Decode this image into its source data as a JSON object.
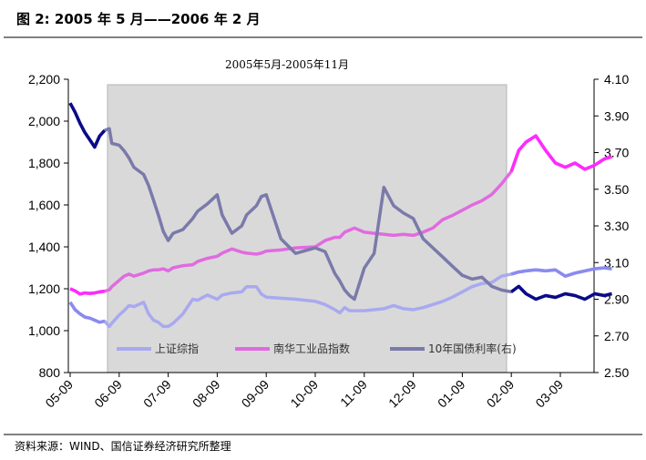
{
  "header": {
    "title": "图 2: 2005 年 5 月——2006 年 2 月"
  },
  "source": "资料来源：WIND、国信证券经济研究所整理",
  "chart_data": {
    "type": "line",
    "annotation": "2005年5月-2005年11月",
    "shaded_range": [
      "2005-05",
      "2005-11"
    ],
    "x_labels": [
      "05-09",
      "06-09",
      "07-09",
      "08-09",
      "09-09",
      "10-09",
      "11-09",
      "12-09",
      "01-09",
      "02-09",
      "03-09"
    ],
    "y_left": {
      "min": 800,
      "max": 2200,
      "ticks": [
        "2,200",
        "2,000",
        "1,800",
        "1,600",
        "1,400",
        "1,200",
        "1,000",
        "800"
      ]
    },
    "y_right": {
      "min": 2.5,
      "max": 4.1,
      "ticks": [
        "4.10",
        "3.90",
        "3.70",
        "3.50",
        "3.30",
        "3.10",
        "2.90",
        "2.70",
        "2.50"
      ]
    },
    "grid": false,
    "legend_position": "bottom-inside",
    "series": [
      {
        "name": "上证综指",
        "axis": "left",
        "color": "#a9a9f0",
        "points": [
          [
            0,
            1135
          ],
          [
            0.1,
            1100
          ],
          [
            0.2,
            1080
          ],
          [
            0.3,
            1065
          ],
          [
            0.4,
            1060
          ],
          [
            0.5,
            1050
          ],
          [
            0.6,
            1040
          ],
          [
            0.7,
            1045
          ],
          [
            0.8,
            1020
          ],
          [
            0.85,
            1035
          ],
          [
            1,
            1075
          ],
          [
            1.1,
            1095
          ],
          [
            1.2,
            1120
          ],
          [
            1.3,
            1115
          ],
          [
            1.5,
            1135
          ],
          [
            1.6,
            1080
          ],
          [
            1.7,
            1050
          ],
          [
            1.8,
            1040
          ],
          [
            1.9,
            1020
          ],
          [
            2,
            1020
          ],
          [
            2.1,
            1035
          ],
          [
            2.3,
            1080
          ],
          [
            2.5,
            1150
          ],
          [
            2.6,
            1145
          ],
          [
            2.8,
            1170
          ],
          [
            3,
            1150
          ],
          [
            3.1,
            1170
          ],
          [
            3.3,
            1180
          ],
          [
            3.5,
            1185
          ],
          [
            3.6,
            1210
          ],
          [
            3.8,
            1210
          ],
          [
            3.9,
            1175
          ],
          [
            4,
            1160
          ],
          [
            4.3,
            1155
          ],
          [
            4.6,
            1150
          ],
          [
            5,
            1140
          ],
          [
            5.2,
            1125
          ],
          [
            5.4,
            1100
          ],
          [
            5.5,
            1085
          ],
          [
            5.6,
            1110
          ],
          [
            5.7,
            1095
          ],
          [
            5.8,
            1095
          ],
          [
            6,
            1095
          ],
          [
            6.2,
            1100
          ],
          [
            6.4,
            1105
          ],
          [
            6.6,
            1120
          ],
          [
            6.8,
            1105
          ],
          [
            7,
            1100
          ],
          [
            7.2,
            1110
          ],
          [
            7.4,
            1125
          ],
          [
            7.6,
            1140
          ],
          [
            7.8,
            1160
          ],
          [
            8,
            1185
          ],
          [
            8.2,
            1210
          ],
          [
            8.4,
            1225
          ],
          [
            8.6,
            1230
          ],
          [
            8.8,
            1260
          ],
          [
            9,
            1270
          ],
          [
            9.15,
            1280
          ],
          [
            9.3,
            1285
          ],
          [
            9.5,
            1290
          ],
          [
            9.7,
            1285
          ],
          [
            9.9,
            1290
          ],
          [
            10.1,
            1260
          ],
          [
            10.3,
            1275
          ],
          [
            10.5,
            1285
          ],
          [
            10.7,
            1295
          ],
          [
            10.9,
            1300
          ],
          [
            11.05,
            1295
          ]
        ]
      },
      {
        "name": "南华工业品指数",
        "axis": "left",
        "color": "#e06be0",
        "points": [
          [
            0,
            1200
          ],
          [
            0.1,
            1190
          ],
          [
            0.2,
            1175
          ],
          [
            0.3,
            1180
          ],
          [
            0.4,
            1178
          ],
          [
            0.5,
            1180
          ],
          [
            0.6,
            1185
          ],
          [
            0.7,
            1188
          ],
          [
            0.8,
            1195
          ],
          [
            0.85,
            1210
          ],
          [
            1,
            1240
          ],
          [
            1.1,
            1260
          ],
          [
            1.2,
            1270
          ],
          [
            1.3,
            1260
          ],
          [
            1.5,
            1275
          ],
          [
            1.6,
            1285
          ],
          [
            1.7,
            1290
          ],
          [
            1.8,
            1290
          ],
          [
            1.9,
            1295
          ],
          [
            2,
            1285
          ],
          [
            2.1,
            1300
          ],
          [
            2.3,
            1310
          ],
          [
            2.5,
            1315
          ],
          [
            2.6,
            1330
          ],
          [
            2.8,
            1345
          ],
          [
            3,
            1355
          ],
          [
            3.1,
            1370
          ],
          [
            3.3,
            1390
          ],
          [
            3.5,
            1375
          ],
          [
            3.6,
            1370
          ],
          [
            3.8,
            1365
          ],
          [
            3.9,
            1370
          ],
          [
            4,
            1380
          ],
          [
            4.3,
            1385
          ],
          [
            4.6,
            1395
          ],
          [
            5,
            1400
          ],
          [
            5.2,
            1430
          ],
          [
            5.4,
            1445
          ],
          [
            5.5,
            1445
          ],
          [
            5.6,
            1470
          ],
          [
            5.7,
            1480
          ],
          [
            5.8,
            1490
          ],
          [
            6,
            1470
          ],
          [
            6.2,
            1465
          ],
          [
            6.4,
            1460
          ],
          [
            6.6,
            1455
          ],
          [
            6.8,
            1460
          ],
          [
            7,
            1455
          ],
          [
            7.2,
            1470
          ],
          [
            7.4,
            1490
          ],
          [
            7.6,
            1530
          ],
          [
            7.8,
            1550
          ],
          [
            8,
            1575
          ],
          [
            8.2,
            1600
          ],
          [
            8.4,
            1620
          ],
          [
            8.6,
            1650
          ],
          [
            8.8,
            1700
          ],
          [
            9,
            1760
          ],
          [
            9.15,
            1860
          ],
          [
            9.3,
            1900
          ],
          [
            9.5,
            1930
          ],
          [
            9.7,
            1860
          ],
          [
            9.9,
            1800
          ],
          [
            10.1,
            1780
          ],
          [
            10.3,
            1800
          ],
          [
            10.5,
            1770
          ],
          [
            10.7,
            1790
          ],
          [
            10.9,
            1820
          ],
          [
            11.05,
            1830
          ]
        ]
      },
      {
        "name": "10年国债利率(右)",
        "axis": "right",
        "color": "#7a7aaa",
        "points": [
          [
            0,
            3.97
          ],
          [
            0.1,
            3.92
          ],
          [
            0.2,
            3.86
          ],
          [
            0.3,
            3.81
          ],
          [
            0.4,
            3.77
          ],
          [
            0.5,
            3.73
          ],
          [
            0.6,
            3.79
          ],
          [
            0.7,
            3.82
          ],
          [
            0.8,
            3.83
          ],
          [
            0.85,
            3.75
          ],
          [
            1,
            3.74
          ],
          [
            1.1,
            3.71
          ],
          [
            1.2,
            3.67
          ],
          [
            1.3,
            3.62
          ],
          [
            1.5,
            3.58
          ],
          [
            1.6,
            3.52
          ],
          [
            1.7,
            3.44
          ],
          [
            1.8,
            3.36
          ],
          [
            1.9,
            3.27
          ],
          [
            2,
            3.22
          ],
          [
            2.1,
            3.26
          ],
          [
            2.3,
            3.28
          ],
          [
            2.5,
            3.34
          ],
          [
            2.6,
            3.38
          ],
          [
            2.8,
            3.42
          ],
          [
            3,
            3.47
          ],
          [
            3.1,
            3.36
          ],
          [
            3.3,
            3.26
          ],
          [
            3.5,
            3.3
          ],
          [
            3.6,
            3.36
          ],
          [
            3.8,
            3.41
          ],
          [
            3.9,
            3.46
          ],
          [
            4,
            3.47
          ],
          [
            4.3,
            3.23
          ],
          [
            4.6,
            3.15
          ],
          [
            5,
            3.18
          ],
          [
            5.2,
            3.16
          ],
          [
            5.4,
            3.04
          ],
          [
            5.5,
            3.0
          ],
          [
            5.6,
            2.95
          ],
          [
            5.7,
            2.92
          ],
          [
            5.8,
            2.9
          ],
          [
            6,
            3.07
          ],
          [
            6.2,
            3.15
          ],
          [
            6.4,
            3.51
          ],
          [
            6.6,
            3.41
          ],
          [
            6.8,
            3.37
          ],
          [
            7,
            3.34
          ],
          [
            7.2,
            3.23
          ],
          [
            7.4,
            3.18
          ],
          [
            7.6,
            3.13
          ],
          [
            7.8,
            3.08
          ],
          [
            8,
            3.03
          ],
          [
            8.2,
            3.01
          ],
          [
            8.4,
            3.02
          ],
          [
            8.6,
            2.97
          ],
          [
            8.8,
            2.95
          ],
          [
            9,
            2.94
          ],
          [
            9.15,
            2.97
          ],
          [
            9.3,
            2.93
          ],
          [
            9.5,
            2.9
          ],
          [
            9.7,
            2.92
          ],
          [
            9.9,
            2.91
          ],
          [
            10.1,
            2.93
          ],
          [
            10.3,
            2.92
          ],
          [
            10.5,
            2.9
          ],
          [
            10.7,
            2.93
          ],
          [
            10.9,
            2.92
          ],
          [
            11.05,
            2.93
          ]
        ]
      }
    ]
  }
}
